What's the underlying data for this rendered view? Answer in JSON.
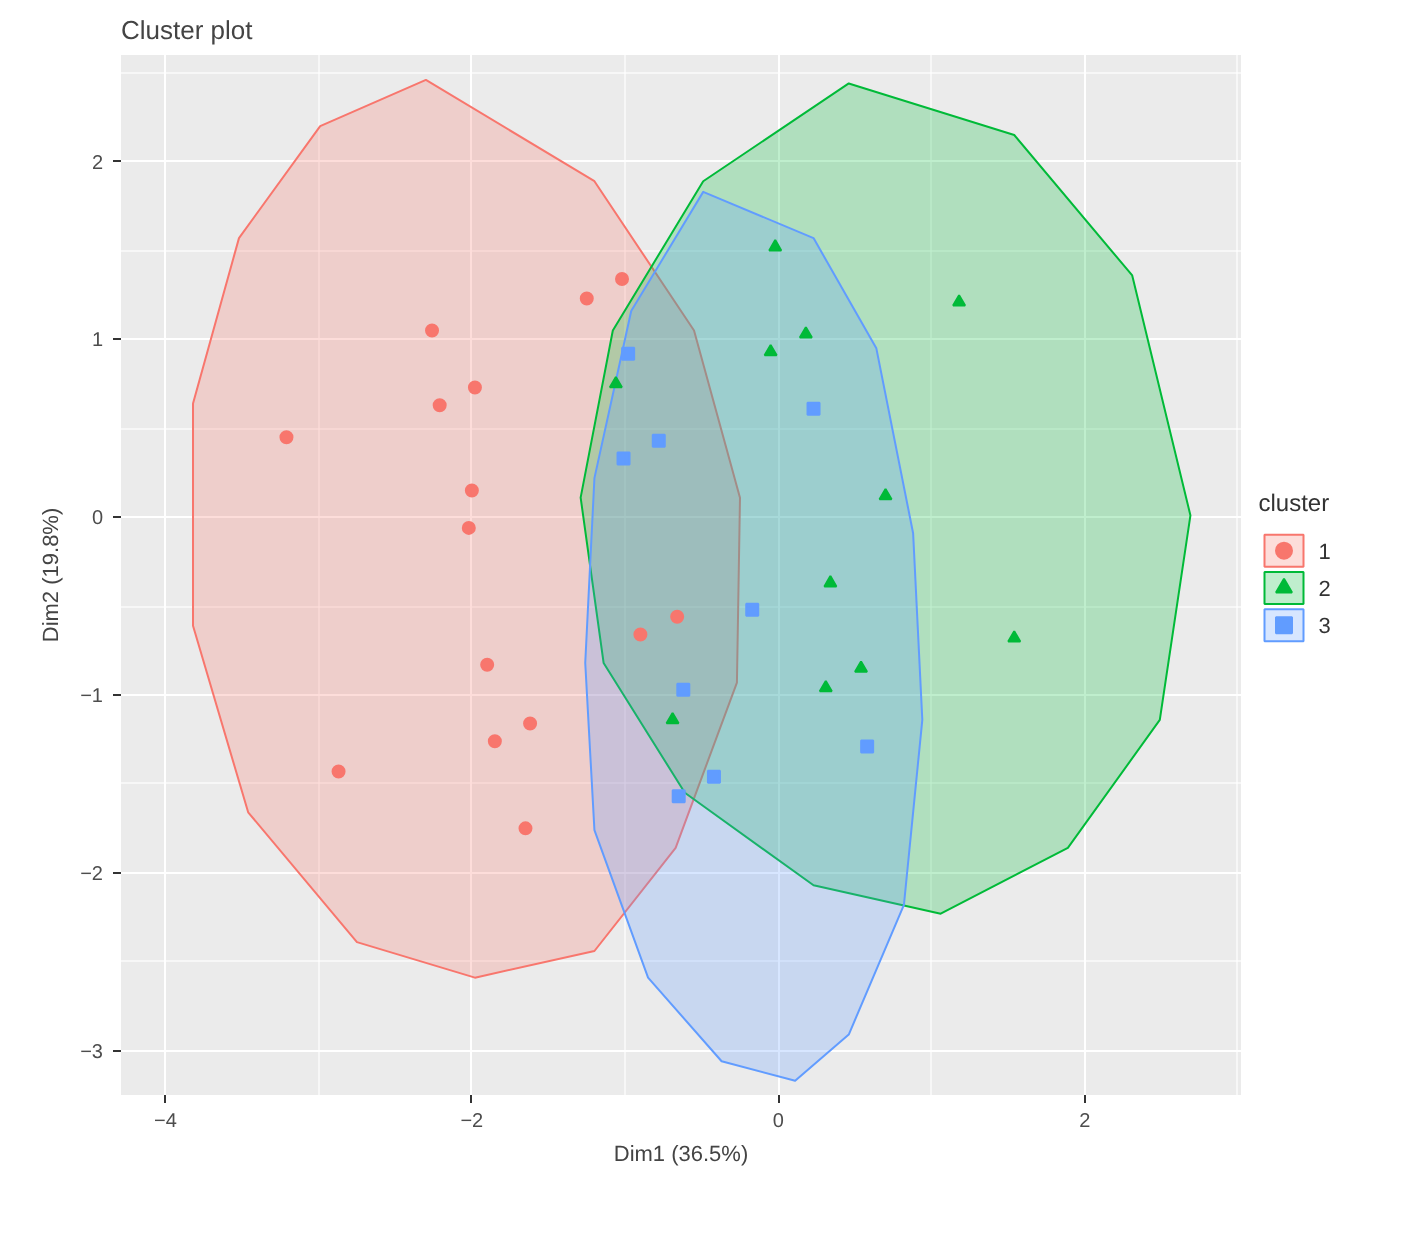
{
  "chart_data": {
    "type": "scatter",
    "title": "Cluster plot",
    "xlabel": "Dim1 (36.5%)",
    "ylabel": "Dim2 (19.8%)",
    "legend_title": "cluster",
    "legend": "right",
    "grid": true,
    "xlim": [
      -4.29,
      3.02
    ],
    "ylim": [
      -3.25,
      2.6
    ],
    "xticks": [
      -4,
      -2,
      0,
      2
    ],
    "yticks": [
      -3,
      -2,
      -1,
      0,
      1,
      2
    ],
    "series": [
      {
        "type": "area",
        "color": "#f8766d",
        "x": [
          -2.3,
          -1.2,
          -0.55,
          -0.25,
          -0.27,
          -0.67,
          -1.2,
          -1.98,
          -2.75,
          -3.46,
          -3.82,
          -3.82,
          -3.52,
          -2.99
        ],
        "values": [
          2.46,
          1.89,
          1.05,
          0.11,
          -0.93,
          -1.86,
          -2.44,
          -2.59,
          -2.39,
          -1.66,
          -0.61,
          0.64,
          1.57,
          2.2
        ]
      },
      {
        "type": "area",
        "color": "#00ba38",
        "x": [
          0.46,
          1.54,
          2.31,
          2.69,
          2.49,
          1.89,
          1.06,
          0.23,
          -0.61,
          -1.14,
          -1.29,
          -1.08,
          -0.49
        ],
        "values": [
          2.44,
          2.15,
          1.36,
          0.01,
          -1.14,
          -1.86,
          -2.23,
          -2.07,
          -1.55,
          -0.82,
          0.11,
          1.05,
          1.89
        ]
      },
      {
        "type": "area",
        "color": "#619cff",
        "x": [
          -0.49,
          0.23,
          0.64,
          0.88,
          0.94,
          0.82,
          0.46,
          0.11,
          -0.37,
          -0.85,
          -1.2,
          -1.26,
          -1.2,
          -0.96
        ],
        "values": [
          1.83,
          1.57,
          0.95,
          -0.09,
          -1.14,
          -2.18,
          -2.91,
          -3.17,
          -3.06,
          -2.59,
          -1.76,
          -0.82,
          0.22,
          1.16
        ]
      },
      {
        "name": "1",
        "marker": "circle",
        "color": "#f8766d",
        "x": [
          -2.26,
          -1.98,
          -2.21,
          -3.21,
          -2.0,
          -1.25,
          -1.02,
          -2.02,
          -0.66,
          -0.9,
          -1.9,
          -1.62,
          -1.85,
          -1.65,
          -2.87
        ],
        "values": [
          1.05,
          0.73,
          0.63,
          0.45,
          0.15,
          1.23,
          1.34,
          -0.06,
          -0.56,
          -0.66,
          -0.83,
          -1.16,
          -1.26,
          -1.75,
          -1.43
        ]
      },
      {
        "name": "2",
        "marker": "triangle",
        "color": "#00ba38",
        "x": [
          -0.02,
          0.18,
          -0.05,
          -1.06,
          1.18,
          0.7,
          0.34,
          1.54,
          0.54,
          0.31,
          -0.69
        ],
        "values": [
          1.52,
          1.03,
          0.93,
          0.75,
          1.21,
          0.12,
          -0.37,
          -0.68,
          -0.85,
          -0.96,
          -1.14
        ]
      },
      {
        "name": "3",
        "marker": "square",
        "color": "#619cff",
        "x": [
          -0.98,
          0.23,
          -0.78,
          -1.01,
          -0.17,
          -0.62,
          -0.42,
          -0.65,
          0.58
        ],
        "values": [
          0.92,
          0.61,
          0.43,
          0.33,
          -0.52,
          -0.97,
          -1.46,
          -1.57,
          -1.29
        ]
      }
    ]
  }
}
